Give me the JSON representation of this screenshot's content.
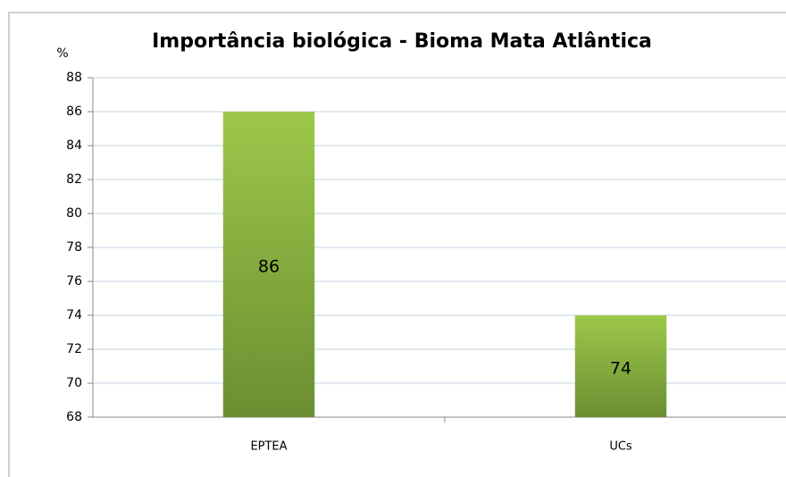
{
  "chart_data": {
    "type": "bar",
    "title": "Importância biológica - Bioma Mata Atlântica",
    "y_label": "%",
    "categories": [
      "EPTEA",
      "UCs"
    ],
    "values": [
      86,
      74
    ],
    "color": "#8bb640",
    "ylim": [
      68,
      88
    ],
    "yticks": [
      68,
      70,
      72,
      74,
      76,
      78,
      80,
      82,
      84,
      86,
      88
    ],
    "grid": true,
    "data_labels": true
  }
}
